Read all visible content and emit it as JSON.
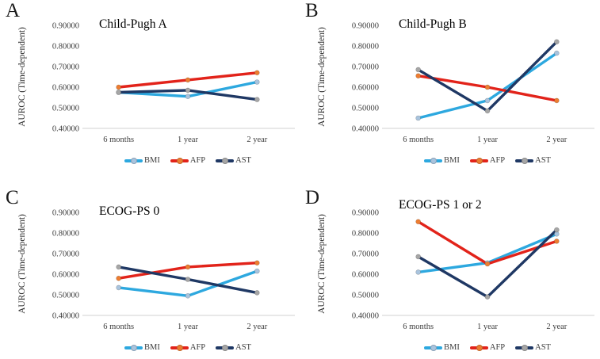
{
  "figure": {
    "background": "#ffffff"
  },
  "axis": {
    "ylabel": "AUROC (Time-dependent)",
    "ymin": 0.4,
    "ymax": 0.9,
    "step": 0.1,
    "tick_labels": [
      "0.40000",
      "0.50000",
      "0.60000",
      "0.70000",
      "0.80000",
      "0.90000"
    ]
  },
  "legend": [
    {
      "name": "BMI",
      "line_color": "#2DA8DF",
      "marker_color": "#A9C4DE"
    },
    {
      "name": "AFP",
      "line_color": "#E2231A",
      "marker_color": "#ED7D31"
    },
    {
      "name": "AST",
      "line_color": "#1F3864",
      "marker_color": "#A6A6A6"
    }
  ],
  "chart_data": [
    {
      "type": "line",
      "panel_letter": "A",
      "title": "Child-Pugh A",
      "categories": [
        "6 months",
        "1 year",
        "2 year"
      ],
      "xlabel": "",
      "ylabel": "AUROC (Time-dependent)",
      "ylim": [
        0.4,
        0.9
      ],
      "grid": false,
      "legend_position": "bottom",
      "series": [
        {
          "name": "BMI",
          "values": [
            0.575,
            0.555,
            0.625
          ]
        },
        {
          "name": "AFP",
          "values": [
            0.6,
            0.635,
            0.67
          ]
        },
        {
          "name": "AST",
          "values": [
            0.575,
            0.585,
            0.54
          ]
        }
      ]
    },
    {
      "type": "line",
      "panel_letter": "B",
      "title": "Child-Pugh B",
      "categories": [
        "6 months",
        "1 year",
        "2 year"
      ],
      "xlabel": "",
      "ylabel": "AUROC (Time-dependent)",
      "ylim": [
        0.4,
        0.9
      ],
      "grid": false,
      "legend_position": "bottom",
      "series": [
        {
          "name": "BMI",
          "values": [
            0.45,
            0.535,
            0.765
          ]
        },
        {
          "name": "AFP",
          "values": [
            0.655,
            0.6,
            0.535
          ]
        },
        {
          "name": "AST",
          "values": [
            0.685,
            0.485,
            0.82
          ]
        }
      ]
    },
    {
      "type": "line",
      "panel_letter": "C",
      "title": "ECOG-PS 0",
      "categories": [
        "6 months",
        "1 year",
        "2 year"
      ],
      "xlabel": "",
      "ylabel": "AUROC (Time-dependent)",
      "ylim": [
        0.4,
        0.9
      ],
      "grid": false,
      "legend_position": "bottom",
      "series": [
        {
          "name": "BMI",
          "values": [
            0.535,
            0.495,
            0.615
          ]
        },
        {
          "name": "AFP",
          "values": [
            0.58,
            0.635,
            0.655
          ]
        },
        {
          "name": "AST",
          "values": [
            0.635,
            0.575,
            0.51
          ]
        }
      ]
    },
    {
      "type": "line",
      "panel_letter": "D",
      "title": "ECOG-PS 1 or 2",
      "categories": [
        "6 months",
        "1 year",
        "2 year"
      ],
      "xlabel": "",
      "ylabel": "AUROC (Time-dependent)",
      "ylim": [
        0.4,
        0.9
      ],
      "grid": false,
      "legend_position": "bottom",
      "series": [
        {
          "name": "BMI",
          "values": [
            0.61,
            0.655,
            0.795
          ]
        },
        {
          "name": "AFP",
          "values": [
            0.855,
            0.65,
            0.76
          ]
        },
        {
          "name": "AST",
          "values": [
            0.685,
            0.49,
            0.815
          ]
        }
      ]
    }
  ]
}
